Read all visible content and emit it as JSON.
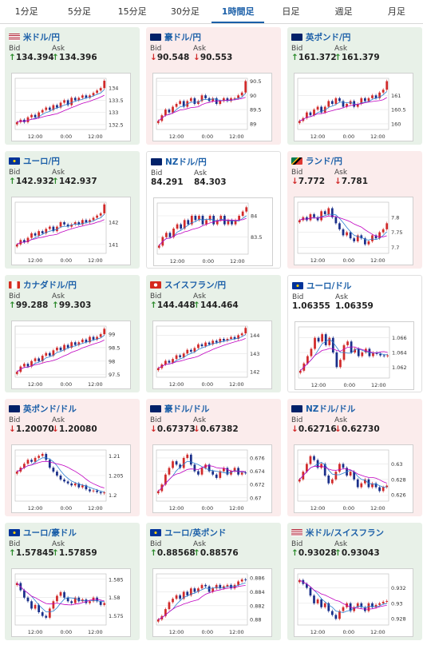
{
  "tabs": [
    "1分足",
    "5分足",
    "15分足",
    "30分足",
    "1時間足",
    "日足",
    "週足",
    "月足"
  ],
  "active_tab": 4,
  "bid_label": "Bid",
  "ask_label": "Ask",
  "colors": {
    "up": "#2a8a2a",
    "down": "#d12a2a",
    "ma": "#c000c0",
    "pair_text": "#1b5fa8"
  },
  "cards": [
    {
      "name": "米ドル/円",
      "dir": "up",
      "bid": "134.394",
      "ask": "134.396",
      "flag": "us-jp",
      "chart": {
        "y_ticks": [
          "134",
          "133.5",
          "133",
          "132.5"
        ],
        "ylim": [
          132.3,
          134.4
        ],
        "x_ticks": [
          "12:00",
          "0:00",
          "12:00"
        ],
        "closes": [
          132.6,
          132.7,
          132.6,
          132.8,
          132.9,
          132.8,
          133.0,
          133.1,
          133.2,
          133.1,
          133.3,
          133.2,
          133.4,
          133.5,
          133.3,
          133.6,
          133.5,
          133.6,
          133.7,
          133.6,
          133.7,
          133.8,
          133.9,
          134.0,
          134.3
        ]
      }
    },
    {
      "name": "豪ドル/円",
      "dir": "down",
      "bid": "90.548",
      "ask": "90.553",
      "flag": "au-jp",
      "chart": {
        "y_ticks": [
          "90.5",
          "90",
          "89.5",
          "89"
        ],
        "ylim": [
          88.8,
          90.6
        ],
        "x_ticks": [
          "12:00",
          "0:00",
          "12:00"
        ],
        "closes": [
          89.1,
          89.3,
          89.5,
          89.4,
          89.6,
          89.7,
          89.8,
          89.6,
          89.8,
          89.9,
          89.7,
          89.8,
          90.0,
          89.9,
          89.8,
          89.9,
          89.7,
          89.8,
          89.9,
          89.8,
          89.9,
          89.9,
          90.0,
          90.1,
          90.5
        ]
      }
    },
    {
      "name": "英ポンド/円",
      "dir": "up",
      "bid": "161.372",
      "ask": "161.379",
      "flag": "gb-jp",
      "chart": {
        "y_ticks": [
          "161",
          "160.5",
          "160"
        ],
        "ylim": [
          159.8,
          161.6
        ],
        "x_ticks": [
          "12:00",
          "0:00",
          "12:00"
        ],
        "closes": [
          160.1,
          160.2,
          160.4,
          160.3,
          160.5,
          160.6,
          160.4,
          160.6,
          160.8,
          160.7,
          160.9,
          160.8,
          160.6,
          160.7,
          160.8,
          160.6,
          160.7,
          160.9,
          160.8,
          160.9,
          161.0,
          160.9,
          161.1,
          161.2,
          161.5
        ]
      }
    },
    {
      "name": "ユーロ/円",
      "dir": "up",
      "bid": "142.932",
      "ask": "142.937",
      "flag": "eu-jp",
      "chart": {
        "y_ticks": [
          "142",
          "141"
        ],
        "ylim": [
          140.6,
          142.9
        ],
        "x_ticks": [
          "12:00",
          "0:00",
          "12:00"
        ],
        "closes": [
          141.0,
          141.2,
          141.1,
          141.3,
          141.5,
          141.4,
          141.6,
          141.5,
          141.7,
          141.8,
          141.6,
          141.8,
          142.0,
          141.9,
          141.8,
          141.9,
          142.0,
          141.9,
          142.1,
          142.0,
          142.1,
          142.2,
          142.3,
          142.4,
          142.8
        ]
      }
    },
    {
      "name": "NZドル/円",
      "dir": "flat",
      "bid": "84.291",
      "ask": "84.303",
      "flag": "nz-jp",
      "chart": {
        "y_ticks": [
          "84",
          "83.5"
        ],
        "ylim": [
          83.1,
          84.3
        ],
        "x_ticks": [
          "12:00",
          "0:00",
          "12:00"
        ],
        "closes": [
          83.3,
          83.5,
          83.6,
          83.5,
          83.7,
          83.8,
          83.7,
          83.9,
          83.8,
          84.0,
          83.9,
          84.0,
          83.8,
          83.9,
          84.0,
          83.8,
          83.9,
          84.0,
          83.8,
          83.9,
          83.8,
          83.9,
          84.0,
          84.1,
          84.2
        ]
      }
    },
    {
      "name": "ランド/円",
      "dir": "down",
      "bid": "7.772",
      "ask": "7.781",
      "flag": "za-jp",
      "chart": {
        "y_ticks": [
          "7.8",
          "7.75",
          "7.7"
        ],
        "ylim": [
          7.68,
          7.85
        ],
        "x_ticks": [
          "12:00",
          "0:00",
          "12:00"
        ],
        "closes": [
          7.79,
          7.8,
          7.79,
          7.81,
          7.8,
          7.79,
          7.82,
          7.81,
          7.83,
          7.8,
          7.78,
          7.76,
          7.74,
          7.75,
          7.73,
          7.72,
          7.74,
          7.73,
          7.71,
          7.72,
          7.74,
          7.73,
          7.75,
          7.76,
          7.78
        ]
      }
    },
    {
      "name": "カナダドル/円",
      "dir": "up",
      "bid": "99.288",
      "ask": "99.303",
      "flag": "ca-jp",
      "chart": {
        "y_ticks": [
          "99",
          "98.5",
          "98",
          "97.5"
        ],
        "ylim": [
          97.4,
          99.3
        ],
        "x_ticks": [
          "12:00",
          "0:00",
          "12:00"
        ],
        "closes": [
          97.6,
          97.8,
          97.9,
          97.8,
          98.0,
          98.1,
          98.0,
          98.2,
          98.3,
          98.2,
          98.4,
          98.5,
          98.4,
          98.6,
          98.5,
          98.7,
          98.6,
          98.7,
          98.8,
          98.7,
          98.9,
          98.8,
          98.9,
          99.0,
          99.2
        ]
      }
    },
    {
      "name": "スイスフラン/円",
      "dir": "up",
      "bid": "144.448",
      "ask": "144.464",
      "flag": "ch-jp",
      "chart": {
        "y_ticks": [
          "144",
          "143",
          "142"
        ],
        "ylim": [
          141.7,
          144.5
        ],
        "x_ticks": [
          "12:00",
          "0:00",
          "12:00"
        ],
        "closes": [
          142.2,
          142.4,
          142.6,
          142.5,
          142.7,
          142.9,
          142.8,
          143.0,
          143.2,
          143.1,
          143.3,
          143.5,
          143.4,
          143.6,
          143.5,
          143.7,
          143.6,
          143.8,
          143.7,
          143.8,
          143.9,
          143.8,
          144.0,
          144.1,
          144.4
        ]
      }
    },
    {
      "name": "ユーロ/ドル",
      "dir": "flat",
      "bid": "1.06355",
      "ask": "1.06359",
      "flag": "eu-us",
      "chart": {
        "y_ticks": [
          "1.066",
          "1.064",
          "1.062"
        ],
        "ylim": [
          1.0605,
          1.0675
        ],
        "x_ticks": [
          "12:00",
          "0:00",
          "12:00"
        ],
        "closes": [
          1.0615,
          1.0625,
          1.0635,
          1.0645,
          1.066,
          1.0655,
          1.0665,
          1.065,
          1.066,
          1.064,
          1.062,
          1.063,
          1.065,
          1.0655,
          1.064,
          1.0645,
          1.0635,
          1.064,
          1.0645,
          1.0635,
          1.064,
          1.0638,
          1.0636,
          1.0635,
          1.0636
        ]
      }
    },
    {
      "name": "英ポンド/ドル",
      "dir": "down",
      "bid": "1.20070",
      "ask": "1.20080",
      "flag": "gb-us",
      "chart": {
        "y_ticks": [
          "1.21",
          "1.205",
          "1.2"
        ],
        "ylim": [
          1.1985,
          1.2115
        ],
        "x_ticks": [
          "12:00",
          "0:00",
          "12:00"
        ],
        "closes": [
          1.206,
          1.207,
          1.208,
          1.209,
          1.2085,
          1.2095,
          1.21,
          1.2105,
          1.209,
          1.207,
          1.206,
          1.205,
          1.204,
          1.2035,
          1.203,
          1.2025,
          1.203,
          1.202,
          1.2025,
          1.2015,
          1.201,
          1.2012,
          1.2008,
          1.2005,
          1.2007
        ]
      }
    },
    {
      "name": "豪ドル/ドル",
      "dir": "down",
      "bid": "0.67373",
      "ask": "0.67382",
      "flag": "au-us",
      "chart": {
        "y_ticks": [
          "0.676",
          "0.674",
          "0.672",
          "0.67"
        ],
        "ylim": [
          0.6695,
          0.6772
        ],
        "x_ticks": [
          "12:00",
          "0:00",
          "12:00"
        ],
        "closes": [
          0.671,
          0.672,
          0.6735,
          0.6745,
          0.6755,
          0.675,
          0.6745,
          0.676,
          0.6765,
          0.675,
          0.674,
          0.6735,
          0.6745,
          0.675,
          0.674,
          0.6735,
          0.673,
          0.674,
          0.6745,
          0.6735,
          0.674,
          0.6745,
          0.6735,
          0.6738,
          0.6737
        ]
      }
    },
    {
      "name": "NZドル/ドル",
      "dir": "down",
      "bid": "0.62716",
      "ask": "0.62730",
      "flag": "nz-us",
      "chart": {
        "y_ticks": [
          "0.63",
          "0.628",
          "0.626"
        ],
        "ylim": [
          0.6252,
          0.6318
        ],
        "x_ticks": [
          "12:00",
          "0:00",
          "12:00"
        ],
        "closes": [
          0.628,
          0.629,
          0.63,
          0.631,
          0.6305,
          0.6295,
          0.63,
          0.6285,
          0.6275,
          0.628,
          0.629,
          0.63,
          0.6295,
          0.6285,
          0.629,
          0.628,
          0.627,
          0.6275,
          0.628,
          0.627,
          0.6275,
          0.627,
          0.6265,
          0.627,
          0.6272
        ]
      }
    },
    {
      "name": "ユーロ/豪ドル",
      "dir": "up",
      "bid": "1.57845",
      "ask": "1.57859",
      "flag": "eu-au",
      "chart": {
        "y_ticks": [
          "1.585",
          "1.58",
          "1.575"
        ],
        "ylim": [
          1.5725,
          1.5865
        ],
        "x_ticks": [
          "12:00",
          "0:00",
          "12:00"
        ],
        "closes": [
          1.584,
          1.582,
          1.58,
          1.579,
          1.577,
          1.578,
          1.576,
          1.575,
          1.5745,
          1.577,
          1.579,
          1.5805,
          1.5815,
          1.58,
          1.579,
          1.5785,
          1.58,
          1.579,
          1.5795,
          1.5785,
          1.579,
          1.58,
          1.579,
          1.578,
          1.5785
        ]
      }
    },
    {
      "name": "ユーロ/英ポンド",
      "dir": "up",
      "bid": "0.88568",
      "ask": "0.88576",
      "flag": "eu-gb",
      "chart": {
        "y_ticks": [
          "0.886",
          "0.884",
          "0.882",
          "0.88"
        ],
        "ylim": [
          0.8792,
          0.8866
        ],
        "x_ticks": [
          "12:00",
          "0:00",
          "12:00"
        ],
        "closes": [
          0.88,
          0.8805,
          0.8815,
          0.8825,
          0.883,
          0.8835,
          0.883,
          0.884,
          0.8835,
          0.8845,
          0.884,
          0.8845,
          0.885,
          0.8848,
          0.884,
          0.8845,
          0.885,
          0.8845,
          0.8848,
          0.885,
          0.8845,
          0.885,
          0.8855,
          0.8858,
          0.8857
        ]
      }
    },
    {
      "name": "米ドル/スイスフラン",
      "dir": "up",
      "bid": "0.93028",
      "ask": "0.93043",
      "flag": "us-ch",
      "chart": {
        "y_ticks": [
          "0.932",
          "0.93",
          "0.928"
        ],
        "ylim": [
          0.9272,
          0.9338
        ],
        "x_ticks": [
          "12:00",
          "0:00",
          "12:00"
        ],
        "closes": [
          0.933,
          0.9325,
          0.932,
          0.931,
          0.93,
          0.9305,
          0.9295,
          0.93,
          0.929,
          0.9285,
          0.928,
          0.929,
          0.9295,
          0.93,
          0.929,
          0.9295,
          0.93,
          0.9295,
          0.929,
          0.93,
          0.9295,
          0.9298,
          0.93,
          0.9302,
          0.9303
        ]
      }
    }
  ]
}
